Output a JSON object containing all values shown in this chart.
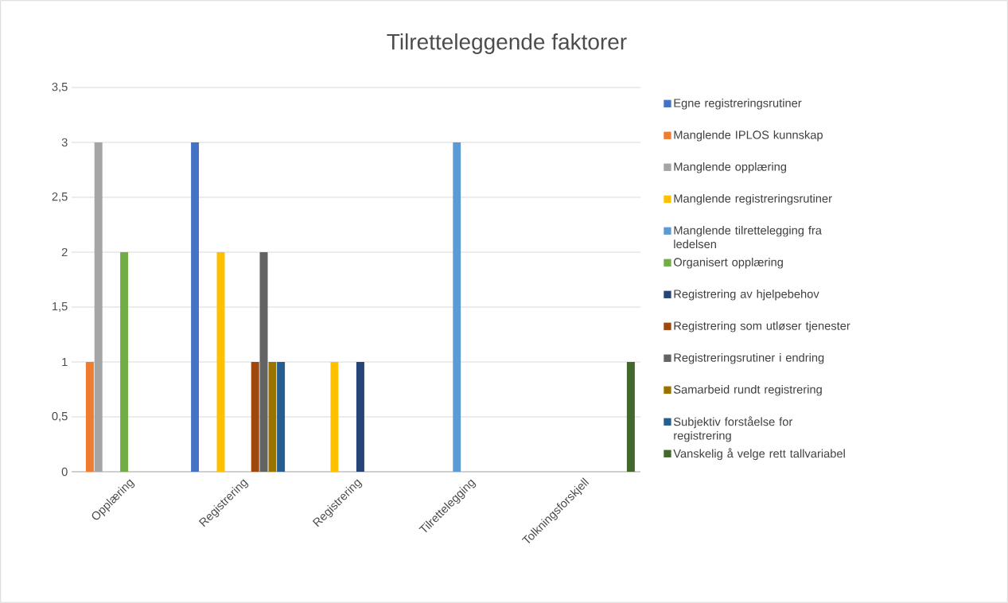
{
  "chart_data": {
    "type": "bar",
    "title": "Tilretteleggende faktorer",
    "categories": [
      "Opplæring",
      "Registrering",
      "Registrering",
      "Tilrettelegging",
      "Tolkningsforskjell"
    ],
    "series": [
      {
        "name": "Egne registreringsrutiner",
        "color": "#4472c4",
        "values": [
          null,
          3,
          null,
          null,
          null
        ]
      },
      {
        "name": "Manglende IPLOS kunnskap",
        "color": "#ed7d31",
        "values": [
          1,
          null,
          null,
          null,
          null
        ]
      },
      {
        "name": "Manglende opplæring",
        "color": "#a5a5a5",
        "values": [
          3,
          null,
          null,
          null,
          null
        ]
      },
      {
        "name": "Manglende registreringsrutiner",
        "color": "#ffc000",
        "values": [
          null,
          2,
          1,
          null,
          null
        ]
      },
      {
        "name": "Manglende tilrettelegging fra ledelsen",
        "color": "#5b9bd5",
        "values": [
          null,
          null,
          null,
          3,
          null
        ]
      },
      {
        "name": "Organisert opplæring",
        "color": "#70ad47",
        "values": [
          2,
          null,
          null,
          null,
          null
        ]
      },
      {
        "name": "Registrering av hjelpebehov",
        "color": "#264478",
        "values": [
          null,
          null,
          1,
          null,
          null
        ]
      },
      {
        "name": "Registrering som utløser tjenester",
        "color": "#9e480e",
        "values": [
          null,
          1,
          null,
          null,
          null
        ]
      },
      {
        "name": "Registreringsrutiner i endring",
        "color": "#636363",
        "values": [
          null,
          2,
          null,
          null,
          null
        ]
      },
      {
        "name": "Samarbeid rundt registrering",
        "color": "#997300",
        "values": [
          null,
          1,
          null,
          null,
          null
        ]
      },
      {
        "name": "Subjektiv forståelse for registrering",
        "color": "#255e91",
        "values": [
          null,
          1,
          null,
          null,
          null
        ]
      },
      {
        "name": "Vanskelig å velge rett tallvariabel",
        "color": "#43682b",
        "values": [
          null,
          null,
          null,
          null,
          1
        ]
      }
    ],
    "ylim": [
      0,
      3.5
    ],
    "yticks": [
      0,
      {
        "value": 0.5,
        "label": "0,5"
      },
      1,
      {
        "value": 1.5,
        "label": "1,5"
      },
      2,
      {
        "value": 2.5,
        "label": "2,5"
      },
      3,
      {
        "value": 3.5,
        "label": "3,5"
      }
    ],
    "grid": "y",
    "legend": "right"
  }
}
